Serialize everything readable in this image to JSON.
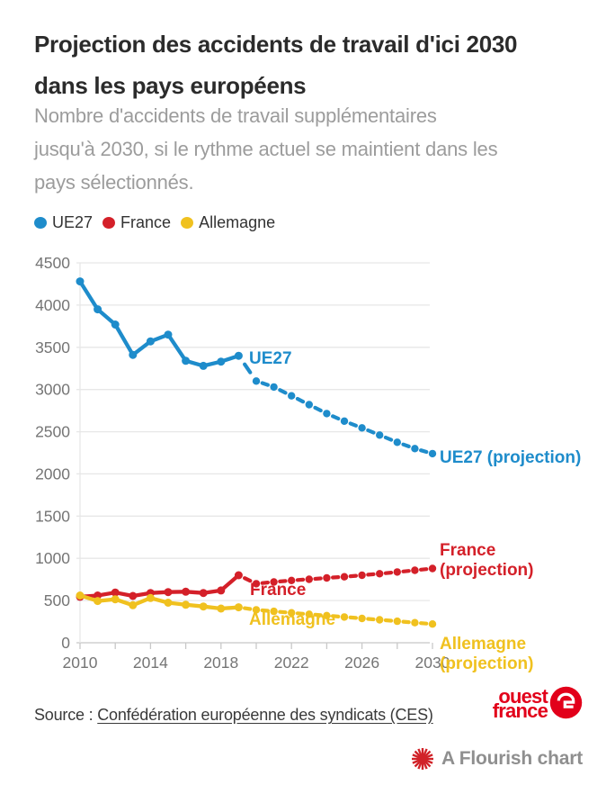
{
  "header": {
    "title": "Projection des accidents de travail d'ici 2030 dans les pays européens",
    "title_lines": [
      "Projection des accidents de travail d'ici 2030",
      "dans les pays européens"
    ],
    "subtitle": "Nombre d'accidents de travail supplémentaires jusqu'à 2030, si le rythme actuel se maintient dans les pays sélectionnés.",
    "subtitle_lines": [
      "Nombre d'accidents de travail supplémentaires",
      "jusqu'à 2030, si le rythme actuel se maintient dans les",
      "pays sélectionnés."
    ]
  },
  "colors": {
    "blue": "#1e8ccb",
    "red": "#d42029",
    "yellow": "#f0c11f",
    "logo_red": "#e2001a",
    "flourish_red": "#d12228"
  },
  "legend": {
    "items": [
      {
        "label": "UE27",
        "slug": "ue27",
        "color": "#1e8ccb"
      },
      {
        "label": "France",
        "slug": "france",
        "color": "#d42029"
      },
      {
        "label": "Allemagne",
        "slug": "allemagne",
        "color": "#f0c11f"
      }
    ]
  },
  "chart_data": {
    "type": "line",
    "title": "Projection des accidents de travail d'ici 2030 dans les pays européens",
    "xlabel": "",
    "ylabel": "",
    "xlim": [
      2010,
      2030
    ],
    "ylim": [
      0,
      4500
    ],
    "grid": true,
    "axes": {
      "y_ticks": [
        0,
        500,
        1000,
        1500,
        2000,
        2500,
        3000,
        3500,
        4000,
        4500
      ],
      "x_tick_labels": [
        2010,
        2014,
        2018,
        2022,
        2026,
        2030
      ],
      "x_minor_ticks": [
        2010,
        2012,
        2014,
        2016,
        2018,
        2020,
        2022,
        2024,
        2026,
        2028,
        2030
      ]
    },
    "series": [
      {
        "name": "UE27",
        "slug": "ue27-actual",
        "color": "#1e8ccb",
        "style": "solid",
        "years": [
          2010,
          2011,
          2012,
          2013,
          2014,
          2015,
          2016,
          2017,
          2018,
          2019
        ],
        "values": [
          4280,
          3950,
          3770,
          3410,
          3570,
          3650,
          3340,
          3280,
          3330,
          3400
        ]
      },
      {
        "name": "UE27 (projection)",
        "slug": "ue27-projection",
        "color": "#1e8ccb",
        "style": "dashed",
        "years": [
          2019,
          2020,
          2021,
          2022,
          2023,
          2024,
          2025,
          2026,
          2027,
          2028,
          2029,
          2030
        ],
        "values": [
          3400,
          3100,
          3030,
          2925,
          2820,
          2715,
          2625,
          2545,
          2460,
          2375,
          2300,
          2240
        ]
      },
      {
        "name": "France",
        "slug": "france-actual",
        "color": "#d42029",
        "style": "solid",
        "years": [
          2010,
          2011,
          2012,
          2013,
          2014,
          2015,
          2016,
          2017,
          2018,
          2019
        ],
        "values": [
          545,
          560,
          595,
          555,
          590,
          600,
          605,
          590,
          620,
          800
        ]
      },
      {
        "name": "France (projection)",
        "slug": "france-projection",
        "color": "#d42029",
        "style": "dashed",
        "years": [
          2019,
          2020,
          2021,
          2022,
          2023,
          2024,
          2025,
          2026,
          2027,
          2028,
          2029,
          2030
        ],
        "values": [
          800,
          700,
          720,
          738,
          752,
          768,
          782,
          800,
          818,
          838,
          858,
          880
        ]
      },
      {
        "name": "Allemagne",
        "slug": "allemagne-actual",
        "color": "#f0c11f",
        "style": "solid",
        "years": [
          2010,
          2011,
          2012,
          2013,
          2014,
          2015,
          2016,
          2017,
          2018,
          2019
        ],
        "values": [
          560,
          495,
          515,
          445,
          530,
          475,
          450,
          430,
          405,
          420
        ]
      },
      {
        "name": "Allemagne (projection)",
        "slug": "allemagne-projection",
        "color": "#f0c11f",
        "style": "dashed",
        "years": [
          2019,
          2020,
          2021,
          2022,
          2023,
          2024,
          2025,
          2026,
          2027,
          2028,
          2029,
          2030
        ],
        "values": [
          420,
          390,
          372,
          355,
          338,
          322,
          305,
          288,
          272,
          255,
          238,
          222
        ]
      }
    ],
    "annotations": [
      {
        "id": "ue27",
        "color": "#1e8ccb",
        "lines": [
          "UE27"
        ]
      },
      {
        "id": "ue27_proj",
        "color": "#1e8ccb",
        "lines": [
          "UE27 (projection)"
        ]
      },
      {
        "id": "france",
        "color": "#d42029",
        "lines": [
          "France"
        ]
      },
      {
        "id": "france_proj",
        "color": "#d42029",
        "lines": [
          "France",
          "(projection)"
        ]
      },
      {
        "id": "allemagne",
        "color": "#f0c11f",
        "lines": [
          "Allemagne"
        ]
      },
      {
        "id": "allemagne_proj",
        "color": "#f0c11f",
        "lines": [
          "Allemagne",
          "(projection)"
        ]
      }
    ],
    "legend_position": "top"
  },
  "footer": {
    "source_prefix": "Source : ",
    "source_link": "Confédération européenne des syndicats (CES)",
    "logo_line1": "ouest",
    "logo_line2": "france",
    "flourish_label": "A Flourish chart"
  }
}
